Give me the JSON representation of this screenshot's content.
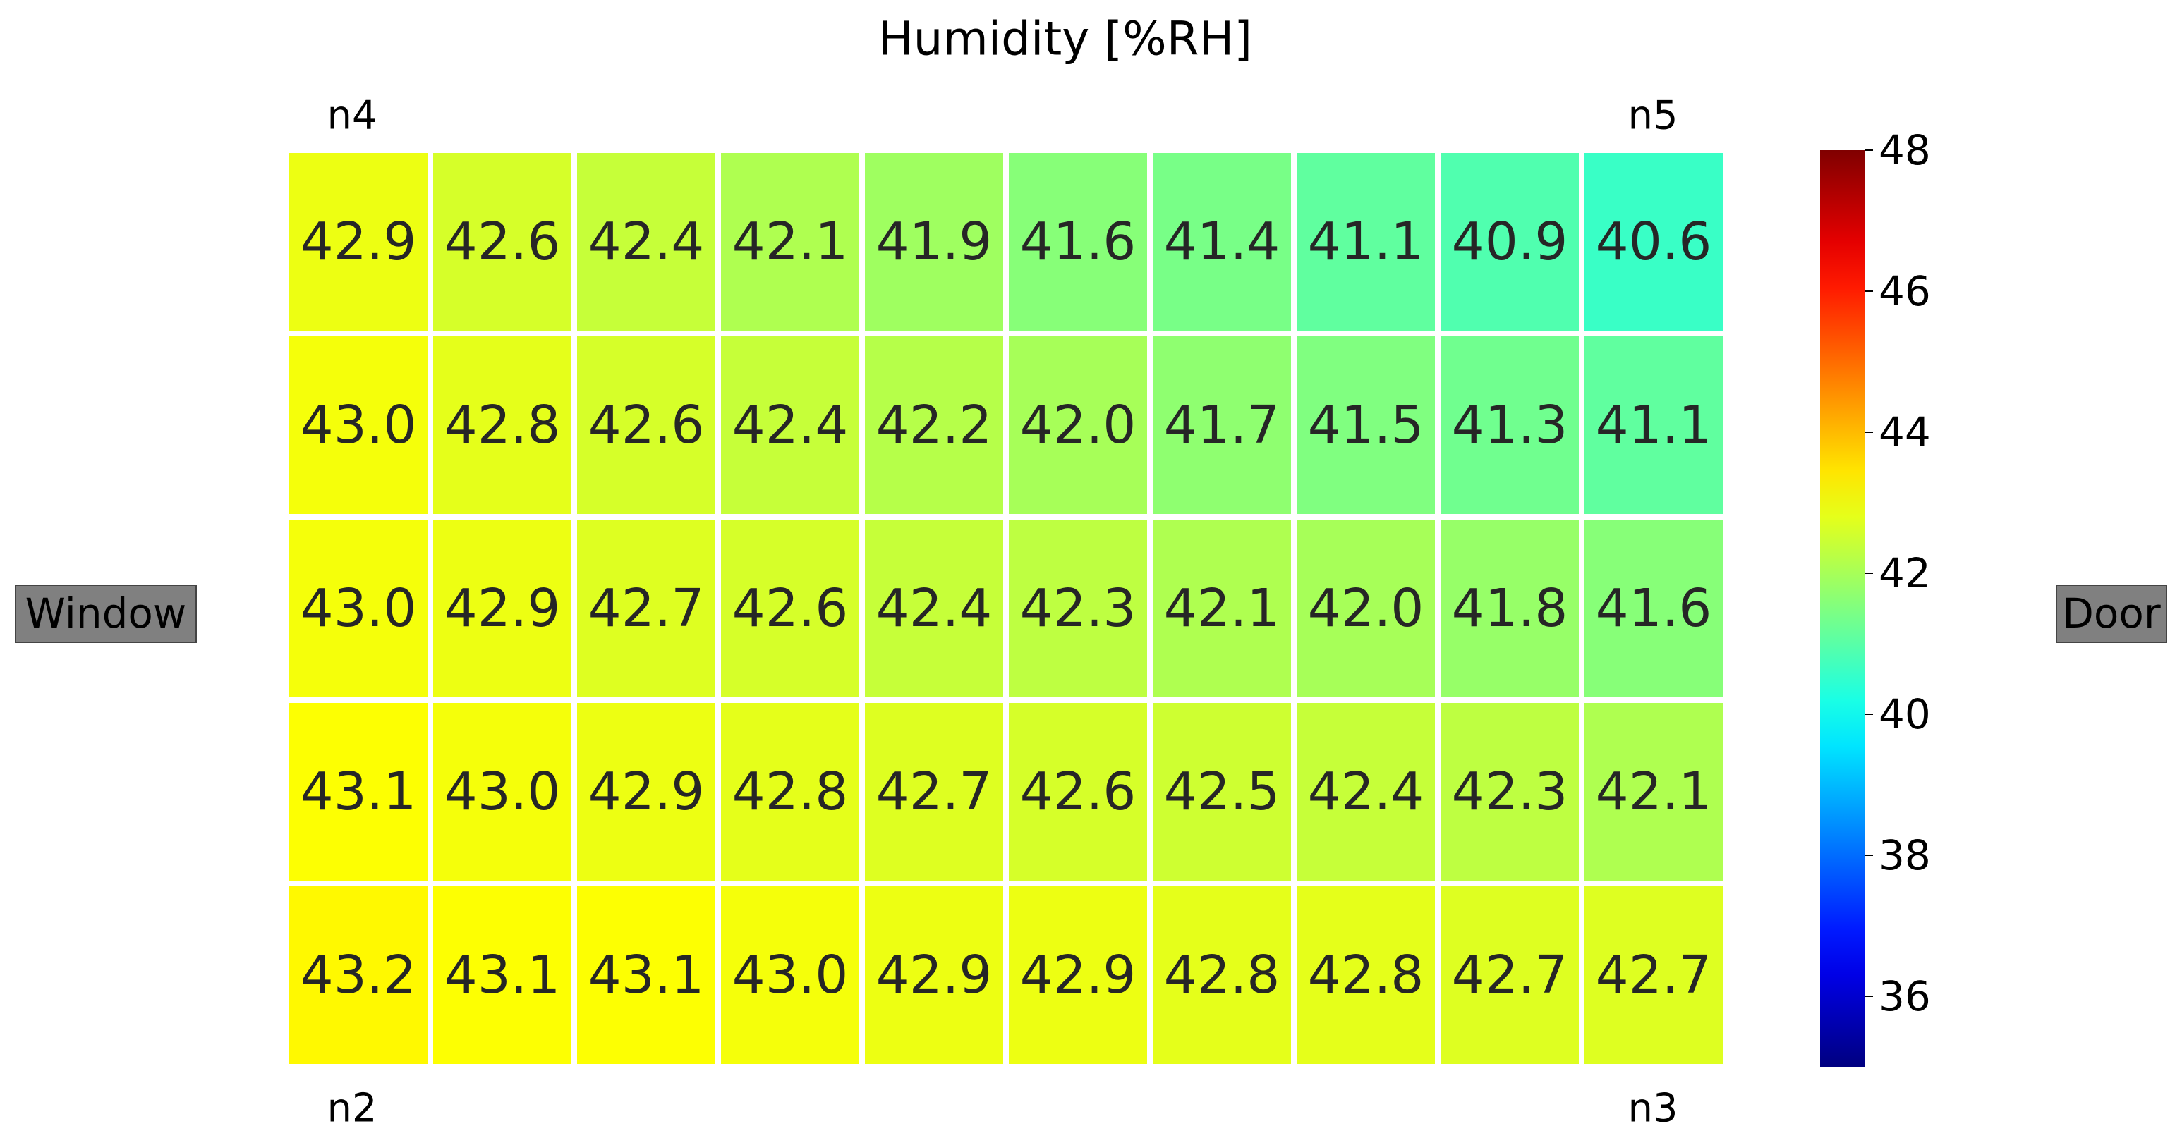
{
  "chart_data": {
    "type": "heatmap",
    "title": "Humidity [%RH]",
    "corner_labels": {
      "top_left": "n4",
      "top_right": "n5",
      "bottom_left": "n2",
      "bottom_right": "n3"
    },
    "side_labels": {
      "left": "Window",
      "right": "Door"
    },
    "colormap": "jet",
    "values": [
      [
        42.9,
        42.6,
        42.4,
        42.1,
        41.9,
        41.6,
        41.4,
        41.1,
        40.9,
        40.6
      ],
      [
        43.0,
        42.8,
        42.6,
        42.4,
        42.2,
        42.0,
        41.7,
        41.5,
        41.3,
        41.1
      ],
      [
        43.0,
        42.9,
        42.7,
        42.6,
        42.4,
        42.3,
        42.1,
        42.0,
        41.8,
        41.6
      ],
      [
        43.1,
        43.0,
        42.9,
        42.8,
        42.7,
        42.6,
        42.5,
        42.4,
        42.3,
        42.1
      ],
      [
        43.2,
        43.1,
        43.1,
        43.0,
        42.9,
        42.9,
        42.8,
        42.8,
        42.7,
        42.7
      ]
    ],
    "value_labels": [
      [
        "42.9",
        "42.6",
        "42.4",
        "42.1",
        "41.9",
        "41.6",
        "41.4",
        "41.1",
        "40.9",
        "40.6"
      ],
      [
        "43.0",
        "42.8",
        "42.6",
        "42.4",
        "42.2",
        "42.0",
        "41.7",
        "41.5",
        "41.3",
        "41.1"
      ],
      [
        "43.0",
        "42.9",
        "42.7",
        "42.6",
        "42.4",
        "42.3",
        "42.1",
        "42.0",
        "41.8",
        "41.6"
      ],
      [
        "43.1",
        "43.0",
        "42.9",
        "42.8",
        "42.7",
        "42.6",
        "42.5",
        "42.4",
        "42.3",
        "42.1"
      ],
      [
        "43.2",
        "43.1",
        "43.1",
        "43.0",
        "42.9",
        "42.9",
        "42.8",
        "42.8",
        "42.7",
        "42.7"
      ]
    ],
    "zlim": [
      35,
      48
    ],
    "zticks": [
      36,
      38,
      40,
      42,
      44,
      46,
      48
    ]
  }
}
